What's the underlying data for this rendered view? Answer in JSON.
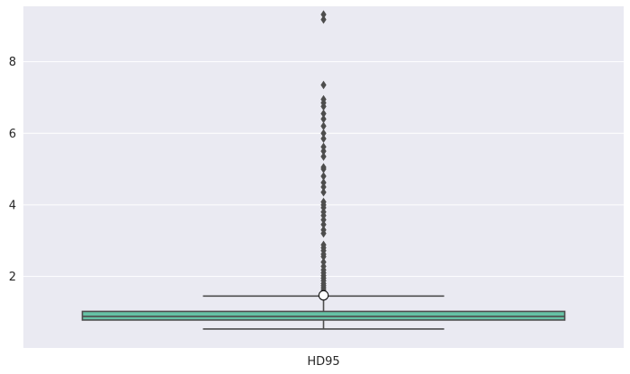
{
  "chart_data": {
    "type": "box",
    "categories": [
      "HD95"
    ],
    "y_ticks": [
      "2",
      "4",
      "6",
      "8"
    ],
    "ylim": [
      0,
      9.55
    ],
    "grid": true,
    "box": {
      "q1": 0.78,
      "median": 0.88,
      "q3": 1.02,
      "whisker_low": 0.53,
      "whisker_high": 1.45,
      "mean": 1.47
    },
    "outliers": [
      1.55,
      1.62,
      1.68,
      1.74,
      1.8,
      1.88,
      1.95,
      2.02,
      2.1,
      2.18,
      2.28,
      2.4,
      2.55,
      2.62,
      2.72,
      2.8,
      2.88,
      3.2,
      3.3,
      3.45,
      3.58,
      3.7,
      3.8,
      3.92,
      4.0,
      4.08,
      4.35,
      4.5,
      4.62,
      4.8,
      5.0,
      5.05,
      5.35,
      5.5,
      5.62,
      5.85,
      6.0,
      6.2,
      6.4,
      6.55,
      6.75,
      6.85,
      6.95,
      7.35,
      9.18,
      9.32
    ],
    "colors": {
      "background": "#EAEAF2",
      "grid": "#FFFFFF",
      "box_fill": "#66C2A5",
      "lines": "#4D4D4D",
      "mean_marker_fill": "#FFFFFF"
    }
  }
}
